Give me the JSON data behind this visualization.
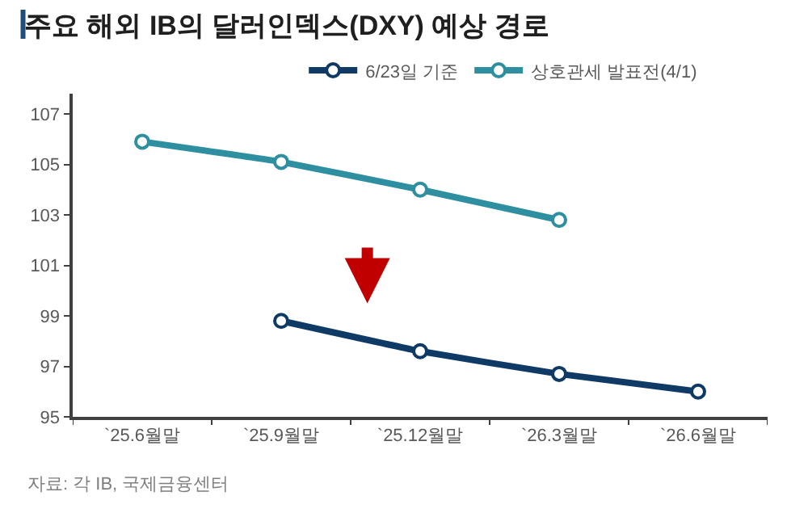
{
  "chart_data": {
    "type": "line",
    "title": "주요 해외 IB의 달러인덱스(DXY) 예상 경로",
    "categories": [
      "`25.6월말",
      "`25.9월말",
      "`25.12월말",
      "`26.3월말",
      "`26.6월말"
    ],
    "series": [
      {
        "name": "6/23일 기준",
        "color": "#0f3a66",
        "values": [
          null,
          98.8,
          97.6,
          96.7,
          96.0
        ]
      },
      {
        "name": "상호관세 발표전(4/1)",
        "color": "#2e8fa0",
        "values": [
          105.9,
          105.1,
          104.0,
          102.8,
          null
        ]
      }
    ],
    "ylim": [
      95,
      107.8
    ],
    "yticks": [
      95,
      97,
      99,
      101,
      103,
      105,
      107
    ],
    "legend": "top",
    "marker": "circle",
    "line_style": "solid",
    "annotations": [
      "자료: 각 IB, 국제금융센터"
    ]
  }
}
